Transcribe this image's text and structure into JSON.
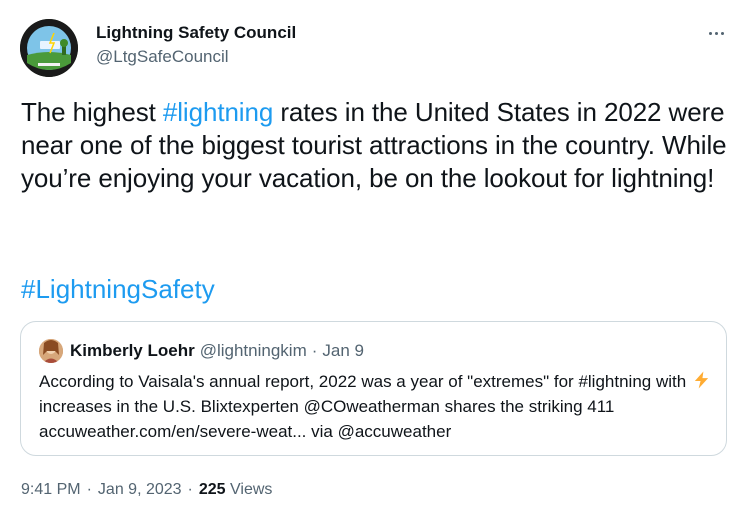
{
  "author": {
    "name": "Lightning Safety Council",
    "handle": "@LtgSafeCouncil",
    "avatar_icon": "lightning-safety-council-logo",
    "avatar_text_top": "NATIONAL LIGHTNING SAFETY COUNCIL",
    "avatar_text_center": "No Place Outside is Safe!",
    "avatar_text_bottom": "When Thunder Roars Go Indoors"
  },
  "more_icon": "more-horizontal-icon",
  "tweet": {
    "text_before": "The highest ",
    "hashtag_1": "#lightning",
    "text_after": " rates in the United States in 2022 were near one of the biggest tourist attractions in the country. While you’re enjoying your vacation, be on the lookout for lightning!",
    "hashtag_2": "#LightningSafety"
  },
  "quote": {
    "name": "Kimberly Loehr",
    "handle": "@lightningkim",
    "separator": "·",
    "date": "Jan 9",
    "text_1": "According to Vaisala's annual report, 2022 was a year of \"extremes\" for #lightning with ",
    "emoji": "high-voltage-emoji",
    "text_2": "increases in the U.S. Blixtexperten @COweatherman shares the striking 411 accuweather.com/en/severe-weat... via @accuweather"
  },
  "meta": {
    "time": "9:41 PM",
    "date": "Jan 9, 2023",
    "separator": "·",
    "views_count": "225",
    "views_label": "Views"
  },
  "colors": {
    "link": "#1d9bf0",
    "text": "#0f1419",
    "secondary": "#536471",
    "border": "#cfd9de"
  }
}
